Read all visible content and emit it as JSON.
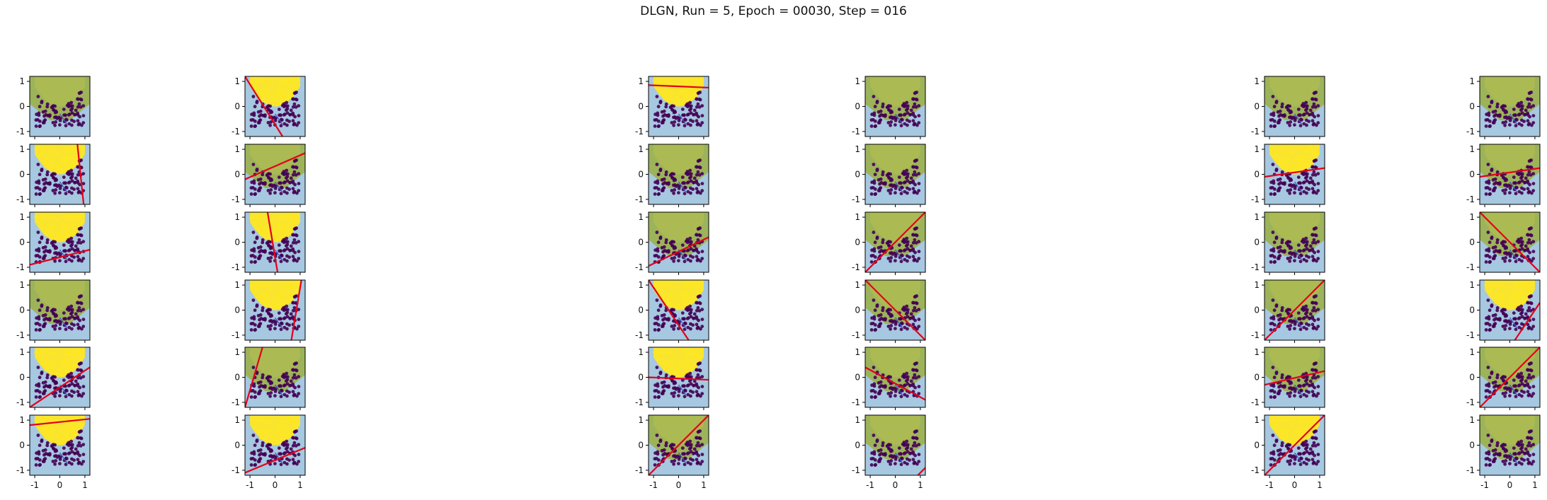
{
  "figure": {
    "title": "DLGN, Run = 5, Epoch = 00030, Step = 016"
  },
  "colors": {
    "class_pos": "#fde725",
    "class_neg": "#440154",
    "region_green": "#9db35a",
    "region_blue": "#a6c8e0",
    "boundary_line": "#e3001b",
    "arrow": "#2e56c9"
  },
  "chart_data": {
    "type": "scatter",
    "layout": "grid",
    "rows": 6,
    "cols": 6,
    "title": "DLGN, Run = 5, Epoch = 00030, Step = 016",
    "xlim": [
      -1.2,
      1.2
    ],
    "ylim": [
      -1.2,
      1.2
    ],
    "xticks": [
      "-1",
      "0",
      "1"
    ],
    "yticks": [
      "1",
      "0",
      "-1"
    ],
    "x_tick_labels_on_bottom_row_only": true,
    "dataset": "two classes in a U-shaped arrangement: yellow points above a parabola, purple points below",
    "panels": [
      {
        "row": 0,
        "col": 0,
        "line": [
          [
            -1.2,
            1.2
          ],
          [
            -1.2,
            1.2
          ]
        ],
        "region": "green"
      },
      {
        "row": 0,
        "col": 1,
        "line": [
          [
            -1.2,
            1.2
          ],
          [
            0.3,
            -1.2
          ]
        ],
        "region": "blue"
      },
      {
        "row": 0,
        "col": 2,
        "line": [
          [
            -1.2,
            0.85
          ],
          [
            1.2,
            0.75
          ]
        ],
        "region": "blue"
      },
      {
        "row": 0,
        "col": 3,
        "line": null,
        "region": "green"
      },
      {
        "row": 0,
        "col": 4,
        "line": null,
        "region": "green"
      },
      {
        "row": 0,
        "col": 5,
        "line": null,
        "region": "green"
      },
      {
        "row": 1,
        "col": 0,
        "line": [
          [
            0.7,
            1.2
          ],
          [
            0.95,
            -1.2
          ]
        ],
        "region": "blue"
      },
      {
        "row": 1,
        "col": 1,
        "line": [
          [
            -1.2,
            -0.2
          ],
          [
            1.2,
            0.85
          ]
        ],
        "region": "green"
      },
      {
        "row": 1,
        "col": 2,
        "line": null,
        "region": "green"
      },
      {
        "row": 1,
        "col": 3,
        "line": null,
        "region": "green"
      },
      {
        "row": 1,
        "col": 4,
        "line": [
          [
            -1.2,
            -0.1
          ],
          [
            1.2,
            0.25
          ]
        ],
        "region": "blue"
      },
      {
        "row": 1,
        "col": 5,
        "line": [
          [
            -1.2,
            -0.1
          ],
          [
            1.2,
            0.25
          ]
        ],
        "region": "green"
      },
      {
        "row": 2,
        "col": 0,
        "line": [
          [
            -1.2,
            -0.9
          ],
          [
            1.2,
            -0.3
          ]
        ],
        "region": "blue"
      },
      {
        "row": 2,
        "col": 1,
        "line": [
          [
            -0.3,
            1.2
          ],
          [
            0.1,
            -1.2
          ]
        ],
        "region": "blue"
      },
      {
        "row": 2,
        "col": 2,
        "line": [
          [
            -1.2,
            -0.95
          ],
          [
            1.2,
            0.2
          ]
        ],
        "region": "green"
      },
      {
        "row": 2,
        "col": 3,
        "line": [
          [
            -1.2,
            -1.2
          ],
          [
            1.2,
            1.2
          ]
        ],
        "region": "green"
      },
      {
        "row": 2,
        "col": 4,
        "line": null,
        "region": "green"
      },
      {
        "row": 2,
        "col": 5,
        "line": [
          [
            -1.2,
            1.2
          ],
          [
            1.2,
            -1.2
          ]
        ],
        "region": "green"
      },
      {
        "row": 3,
        "col": 0,
        "line": null,
        "region": "green"
      },
      {
        "row": 3,
        "col": 1,
        "line": [
          [
            0.65,
            -1.2
          ],
          [
            1.05,
            1.2
          ]
        ],
        "region": "blue"
      },
      {
        "row": 3,
        "col": 2,
        "line": [
          [
            -1.2,
            1.2
          ],
          [
            0.4,
            -1.2
          ]
        ],
        "region": "blue"
      },
      {
        "row": 3,
        "col": 3,
        "line": [
          [
            -1.2,
            1.2
          ],
          [
            1.2,
            -1.2
          ]
        ],
        "region": "green"
      },
      {
        "row": 3,
        "col": 4,
        "line": [
          [
            -1.2,
            -1.2
          ],
          [
            1.2,
            1.2
          ]
        ],
        "region": "green"
      },
      {
        "row": 3,
        "col": 5,
        "line": [
          [
            0.2,
            -1.2
          ],
          [
            1.2,
            0.3
          ]
        ],
        "region": "blue"
      },
      {
        "row": 4,
        "col": 0,
        "line": [
          [
            -1.2,
            -1.2
          ],
          [
            1.2,
            0.4
          ]
        ],
        "region": "blue"
      },
      {
        "row": 4,
        "col": 1,
        "line": [
          [
            -1.2,
            -1.2
          ],
          [
            -0.5,
            1.2
          ]
        ],
        "region": "green"
      },
      {
        "row": 4,
        "col": 2,
        "line": [
          [
            -1.2,
            0.0
          ],
          [
            1.2,
            -0.1
          ]
        ],
        "region": "blue"
      },
      {
        "row": 4,
        "col": 3,
        "line": [
          [
            -1.2,
            0.4
          ],
          [
            1.2,
            -0.9
          ]
        ],
        "region": "green"
      },
      {
        "row": 4,
        "col": 4,
        "line": [
          [
            -1.2,
            -0.3
          ],
          [
            1.2,
            0.25
          ]
        ],
        "region": "green"
      },
      {
        "row": 4,
        "col": 5,
        "line": [
          [
            -1.2,
            -1.2
          ],
          [
            1.2,
            1.2
          ]
        ],
        "region": "green"
      },
      {
        "row": 5,
        "col": 0,
        "line": [
          [
            -1.2,
            0.8
          ],
          [
            1.2,
            1.05
          ]
        ],
        "region": "blue"
      },
      {
        "row": 5,
        "col": 1,
        "line": [
          [
            -1.2,
            -1.1
          ],
          [
            1.2,
            -0.1
          ]
        ],
        "region": "blue"
      },
      {
        "row": 5,
        "col": 2,
        "line": [
          [
            -1.2,
            -1.2
          ],
          [
            1.2,
            1.2
          ]
        ],
        "region": "green"
      },
      {
        "row": 5,
        "col": 3,
        "line": [
          [
            0.9,
            -1.2
          ],
          [
            1.2,
            -0.9
          ]
        ],
        "region": "green"
      },
      {
        "row": 5,
        "col": 4,
        "line": [
          [
            -1.2,
            -1.2
          ],
          [
            1.2,
            1.2
          ]
        ],
        "region": "blue"
      },
      {
        "row": 5,
        "col": 5,
        "line": null,
        "region": "green"
      }
    ]
  }
}
